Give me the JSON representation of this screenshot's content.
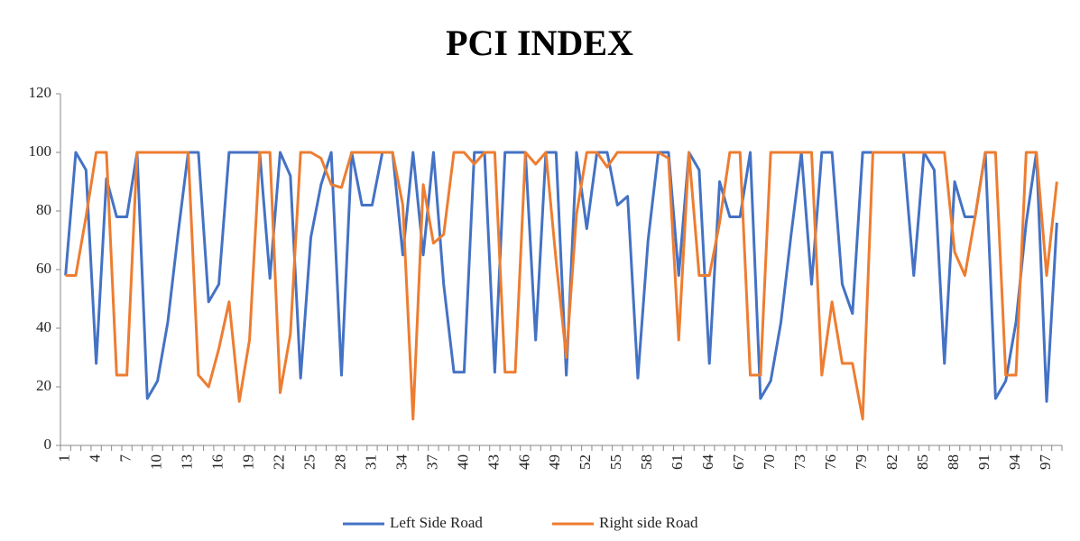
{
  "chart_data": {
    "type": "line",
    "title": "PCI INDEX",
    "categories": [
      "1",
      null,
      null,
      "4",
      null,
      null,
      "7",
      null,
      null,
      "10",
      null,
      null,
      "13",
      null,
      null,
      "16",
      null,
      null,
      "19",
      null,
      null,
      "22",
      null,
      null,
      "25",
      null,
      null,
      "28",
      null,
      null,
      "31",
      null,
      null,
      "34",
      null,
      null,
      "37",
      null,
      null,
      "40",
      null,
      null,
      "43",
      null,
      null,
      "46",
      null,
      null,
      "49",
      null,
      null,
      "52",
      null,
      null,
      "55",
      null,
      null,
      "58",
      null,
      null,
      "61",
      null,
      null,
      "64",
      null,
      null,
      "67",
      null,
      null,
      "70",
      null,
      null,
      "73",
      null,
      null,
      "76",
      null,
      null,
      "79",
      null,
      null,
      "82",
      null,
      null,
      "85",
      null,
      null,
      "88",
      null,
      null,
      "91",
      null,
      null,
      "94",
      null,
      null,
      "97",
      null
    ],
    "series": [
      {
        "name": "Left Side Road",
        "color": "#4472c4",
        "values": [
          58,
          100,
          94,
          28,
          91,
          78,
          78,
          100,
          16,
          22,
          42,
          72,
          100,
          100,
          49,
          55,
          100,
          100,
          100,
          100,
          57,
          100,
          92,
          23,
          71,
          89,
          100,
          24,
          100,
          82,
          82,
          100,
          100,
          65,
          100,
          65,
          100,
          55,
          25,
          25,
          100,
          100,
          25,
          100,
          100,
          100,
          36,
          100,
          100,
          24,
          100,
          74,
          100,
          100,
          82,
          85,
          23,
          70,
          100,
          100,
          58,
          100,
          94,
          28,
          90,
          78,
          78,
          100,
          16,
          22,
          42,
          72,
          100,
          55,
          100,
          100,
          55,
          45,
          100,
          100,
          100,
          100,
          100,
          58,
          100,
          94,
          28,
          90,
          78,
          78,
          100,
          16,
          22,
          42,
          76,
          100,
          15,
          76
        ]
      },
      {
        "name": "Right side Road",
        "color": "#ed7d31",
        "values": [
          58,
          58,
          78,
          100,
          100,
          24,
          24,
          100,
          100,
          100,
          100,
          100,
          100,
          24,
          20,
          33,
          49,
          15,
          36,
          100,
          100,
          18,
          38,
          100,
          100,
          98,
          89,
          88,
          100,
          100,
          100,
          100,
          100,
          82,
          9,
          89,
          69,
          72,
          100,
          100,
          96,
          100,
          100,
          25,
          25,
          100,
          96,
          100,
          63,
          30,
          79,
          100,
          100,
          95,
          100,
          100,
          100,
          100,
          100,
          98,
          36,
          100,
          58,
          58,
          76,
          100,
          100,
          24,
          24,
          100,
          100,
          100,
          100,
          100,
          24,
          49,
          28,
          28,
          9,
          100,
          100,
          100,
          100,
          100,
          100,
          100,
          100,
          66,
          58,
          78,
          100,
          100,
          24,
          24,
          100,
          100,
          58,
          90
        ]
      }
    ],
    "ylim": [
      0,
      120
    ],
    "yticks": [
      0,
      20,
      40,
      60,
      80,
      100,
      120
    ],
    "grid": false,
    "legend": "bottom"
  }
}
